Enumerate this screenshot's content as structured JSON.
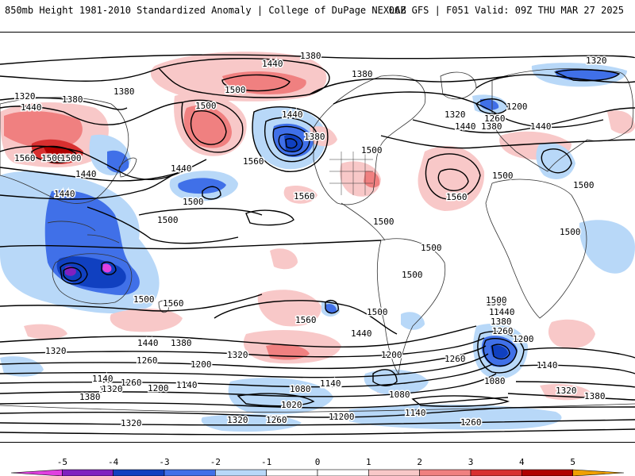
{
  "header": {
    "title_left": "850mb Height 1981-2010 Standardized Anomaly | College of DuPage NEXLAB",
    "title_right": "06Z GFS | F051 Valid: 09Z THU MAR 27 2025"
  },
  "map": {
    "contour_labels": [
      "1380",
      "1440",
      "1320",
      "1320",
      "1380",
      "1440",
      "1380",
      "1500",
      "1500",
      "1500",
      "1560",
      "1560",
      "1560",
      "1500",
      "1440",
      "1440",
      "1440",
      "1500",
      "1380",
      "1440",
      "1440",
      "1380",
      "1200",
      "1260",
      "1320",
      "1380",
      "1440",
      "1500",
      "1500",
      "1560",
      "1500",
      "1500",
      "1500",
      "1500",
      "1500",
      "1560",
      "1500",
      "1560",
      "1500",
      "1500",
      "1500",
      "1440",
      "1380",
      "1320",
      "1260",
      "1200",
      "1140",
      "1080",
      "1020",
      "1140",
      "1200",
      "1260",
      "1320",
      "1380",
      "1440",
      "1320",
      "1260",
      "1200",
      "1140",
      "1080",
      "1260",
      "1200",
      "1140",
      "1080",
      "1200",
      "1320",
      "1380",
      "1500",
      "1440",
      "1380",
      "1260",
      "1200",
      "1140",
      "1080",
      "1260",
      "1320",
      "1260",
      "1200",
      "1140",
      "1260",
      "1320",
      "1380",
      "1320"
    ],
    "anomaly_colors": {
      "m5": "#e040e0",
      "m4": "#8020c0",
      "m3": "#1040c0",
      "m2": "#4070e8",
      "m1": "#b8d8f8",
      "zero": "#ffffff",
      "p1": "#f8c8c8",
      "p2": "#f08080",
      "p3": "#d83030",
      "p4": "#b00000",
      "p5": "#f0a000"
    }
  },
  "colorbar": {
    "ticks": [
      "-5",
      "-4",
      "-3",
      "-2",
      "-1",
      "0",
      "1",
      "2",
      "3",
      "4",
      "5"
    ],
    "segments": [
      {
        "name": "below-minus-5",
        "color": "#e040e0"
      },
      {
        "name": "minus-5-to-minus-4",
        "color": "#8020c0"
      },
      {
        "name": "minus-4-to-minus-3",
        "color": "#1040c0"
      },
      {
        "name": "minus-3-to-minus-2",
        "color": "#4070e8"
      },
      {
        "name": "minus-2-to-minus-1",
        "color": "#b8d8f8"
      },
      {
        "name": "minus-1-to-0",
        "color": "#ffffff"
      },
      {
        "name": "0-to-1",
        "color": "#ffffff"
      },
      {
        "name": "1-to-2",
        "color": "#f8c8c8"
      },
      {
        "name": "2-to-3",
        "color": "#f08080"
      },
      {
        "name": "3-to-4",
        "color": "#d83030"
      },
      {
        "name": "4-to-5",
        "color": "#b00000"
      },
      {
        "name": "above-5",
        "color": "#f0a000"
      }
    ]
  }
}
